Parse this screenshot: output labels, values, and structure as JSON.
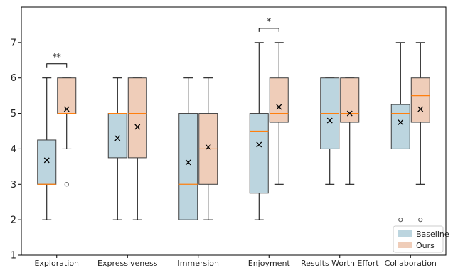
{
  "chart_data": {
    "type": "box",
    "categories": [
      "Exploration",
      "Expressiveness",
      "Immersion",
      "Enjoyment",
      "Results Worth Effort",
      "Collaboration"
    ],
    "ylim": [
      1,
      8
    ],
    "yticks": [
      1,
      2,
      3,
      4,
      5,
      6,
      7
    ],
    "grid": false,
    "legend_position": "bottom-right",
    "colors": {
      "Baseline": "#bcd5df",
      "Ours": "#efcdb9",
      "median": "#ff7f0e",
      "edge": "#3d3d3d"
    },
    "series": [
      {
        "name": "Baseline",
        "boxes": [
          {
            "whislo": 2,
            "q1": 3,
            "med": 3,
            "q3": 4.25,
            "whishi": 6,
            "mean": 3.68,
            "fliers": []
          },
          {
            "whislo": 2,
            "q1": 3.75,
            "med": 5,
            "q3": 5,
            "whishi": 6,
            "mean": 4.3,
            "fliers": []
          },
          {
            "whislo": 2,
            "q1": 2,
            "med": 3,
            "q3": 5,
            "whishi": 6,
            "mean": 3.62,
            "fliers": []
          },
          {
            "whislo": 2,
            "q1": 2.75,
            "med": 4.5,
            "q3": 5,
            "whishi": 7,
            "mean": 4.12,
            "fliers": []
          },
          {
            "whislo": 3,
            "q1": 4,
            "med": 5,
            "q3": 6,
            "whishi": 6,
            "mean": 4.8,
            "fliers": []
          },
          {
            "whislo": 4,
            "q1": 4,
            "med": 5,
            "q3": 5.25,
            "whishi": 7,
            "mean": 4.75,
            "fliers": [
              2
            ]
          }
        ]
      },
      {
        "name": "Ours",
        "boxes": [
          {
            "whislo": 4,
            "q1": 5,
            "med": 5,
            "q3": 6,
            "whishi": 6,
            "mean": 5.12,
            "fliers": [
              3
            ]
          },
          {
            "whislo": 2,
            "q1": 3.75,
            "med": 5,
            "q3": 6,
            "whishi": 6,
            "mean": 4.62,
            "fliers": []
          },
          {
            "whislo": 2,
            "q1": 3,
            "med": 4,
            "q3": 5,
            "whishi": 6,
            "mean": 4.05,
            "fliers": []
          },
          {
            "whislo": 3,
            "q1": 4.75,
            "med": 5,
            "q3": 6,
            "whishi": 7,
            "mean": 5.18,
            "fliers": []
          },
          {
            "whislo": 3,
            "q1": 4.75,
            "med": 5,
            "q3": 6,
            "whishi": 6,
            "mean": 5,
            "fliers": []
          },
          {
            "whislo": 3,
            "q1": 4.75,
            "med": 5.5,
            "q3": 6,
            "whishi": 7,
            "mean": 5.12,
            "fliers": [
              2
            ]
          }
        ]
      }
    ],
    "annotations": [
      {
        "category": "Exploration",
        "text": "**",
        "y": 6.4
      },
      {
        "category": "Enjoyment",
        "text": "*",
        "y": 7.4
      }
    ]
  }
}
